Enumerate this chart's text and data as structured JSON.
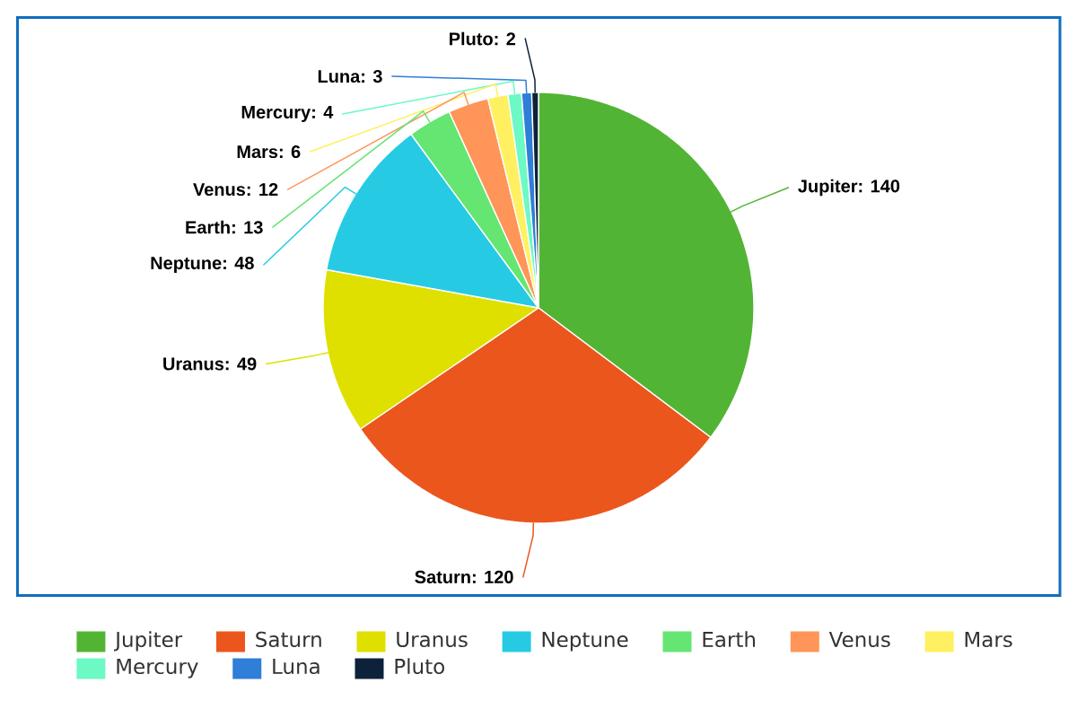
{
  "chart_data": {
    "type": "pie",
    "categories": [
      "Jupiter",
      "Saturn",
      "Uranus",
      "Neptune",
      "Earth",
      "Venus",
      "Mars",
      "Mercury",
      "Luna",
      "Pluto"
    ],
    "values": [
      140,
      120,
      49,
      48,
      13,
      12,
      6,
      4,
      3,
      2
    ],
    "value_labels": [
      "Jupiter: 140",
      "Saturn: 120",
      "Uranus: 49",
      "Neptune: 48",
      "Earth: 13",
      "Venus: 12",
      "Mars: 6",
      "Mercury: 4",
      "Luna: 3",
      "Pluto: 2"
    ],
    "colors": [
      "#52b435",
      "#eb561d",
      "#dfe000",
      "#26cbe3",
      "#65e572",
      "#ff9558",
      "#fff061",
      "#6cf9c4",
      "#2f7ed8",
      "#0d223a"
    ],
    "legend": "bottom"
  }
}
